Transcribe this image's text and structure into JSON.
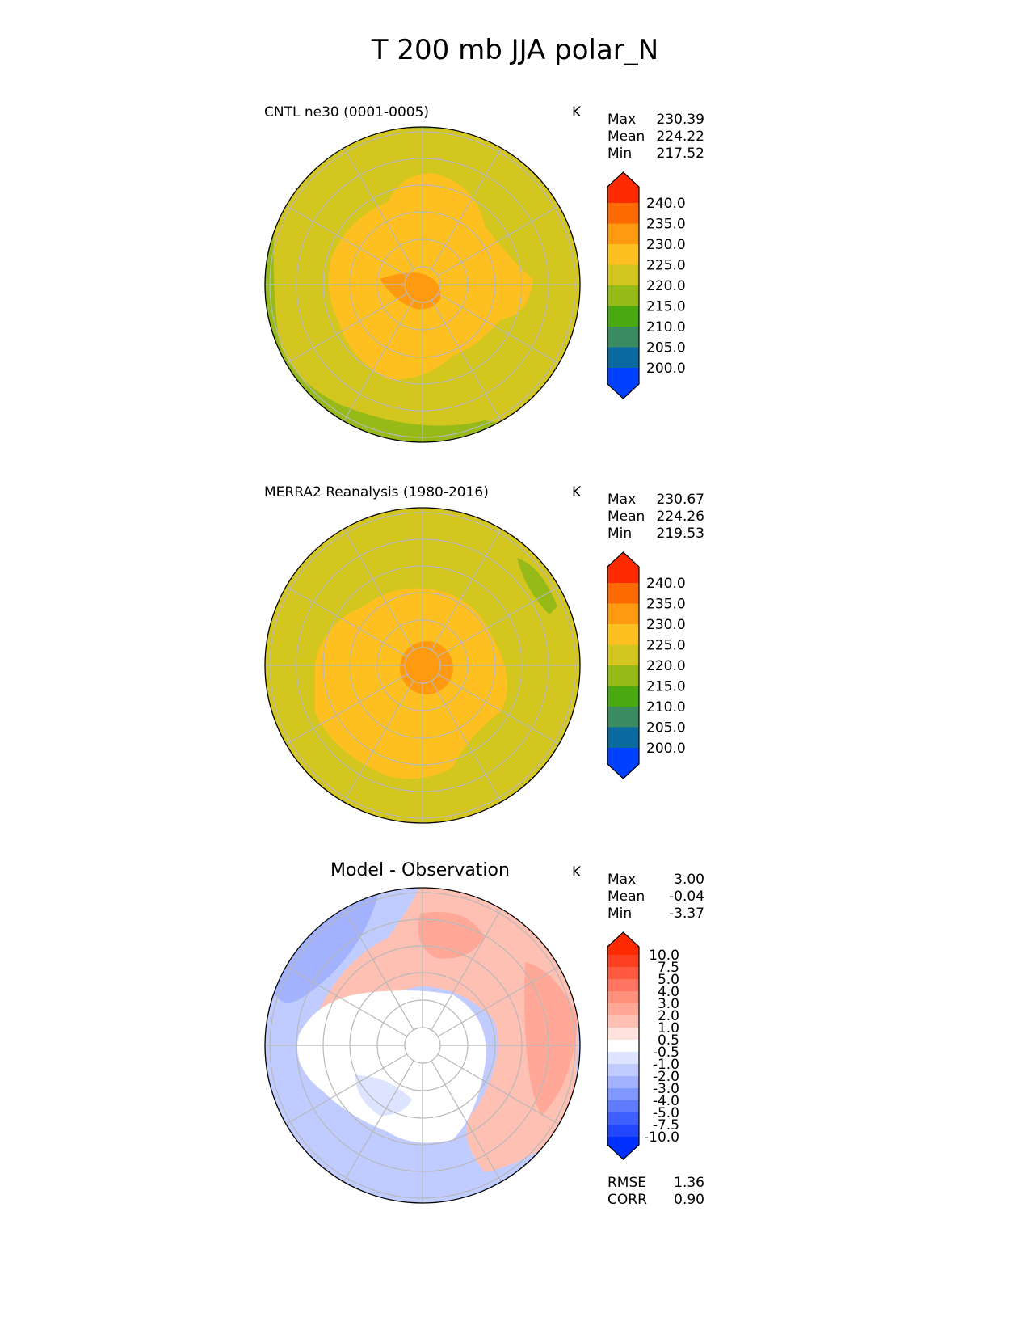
{
  "title": "T 200 mb JJA polar_N",
  "panels": [
    {
      "title": "CNTL ne30 (0001-0005)",
      "units": "K",
      "stats": [
        {
          "label": "Max",
          "value": "230.39"
        },
        {
          "label": "Mean",
          "value": "224.22"
        },
        {
          "label": "Min",
          "value": "217.52"
        }
      ]
    },
    {
      "title": "MERRA2 Reanalysis (1980-2016)",
      "units": "K",
      "stats": [
        {
          "label": "Max",
          "value": "230.67"
        },
        {
          "label": "Mean",
          "value": "224.26"
        },
        {
          "label": "Min",
          "value": "219.53"
        }
      ]
    },
    {
      "title": "Model - Observation",
      "units": "K",
      "stats": [
        {
          "label": "Max",
          "value": "3.00"
        },
        {
          "label": "Mean",
          "value": "-0.04"
        },
        {
          "label": "Min",
          "value": "-3.37"
        }
      ],
      "metrics": [
        {
          "label": "RMSE",
          "value": "1.36"
        },
        {
          "label": "CORR",
          "value": "0.90"
        }
      ]
    }
  ],
  "colorbar_abs": {
    "levels": [
      "240.0",
      "235.0",
      "230.0",
      "225.0",
      "220.0",
      "215.0",
      "210.0",
      "205.0",
      "200.0"
    ],
    "colors": [
      "#ff2a00",
      "#ff6a00",
      "#ff9a10",
      "#fdc020",
      "#d3c61f",
      "#96ba18",
      "#4aa810",
      "#3a8a62",
      "#0a6aa0",
      "#0040ff"
    ]
  },
  "colorbar_diff": {
    "levels": [
      "10.0",
      "7.5",
      "5.0",
      "4.0",
      "3.0",
      "2.0",
      "1.0",
      "0.5",
      "-0.5",
      "-1.0",
      "-2.0",
      "-3.0",
      "-4.0",
      "-5.0",
      "-7.5",
      "-10.0"
    ],
    "colors": [
      "#ff2a00",
      "#ff4020",
      "#ff5a40",
      "#ff7560",
      "#ff907c",
      "#ffa898",
      "#ffc0b4",
      "#ffe2de",
      "#ffffff",
      "#dde4ff",
      "#c0ccff",
      "#a2b2ff",
      "#8098ff",
      "#5f7cff",
      "#3f60ff",
      "#2248ff",
      "#0030ff"
    ]
  }
}
